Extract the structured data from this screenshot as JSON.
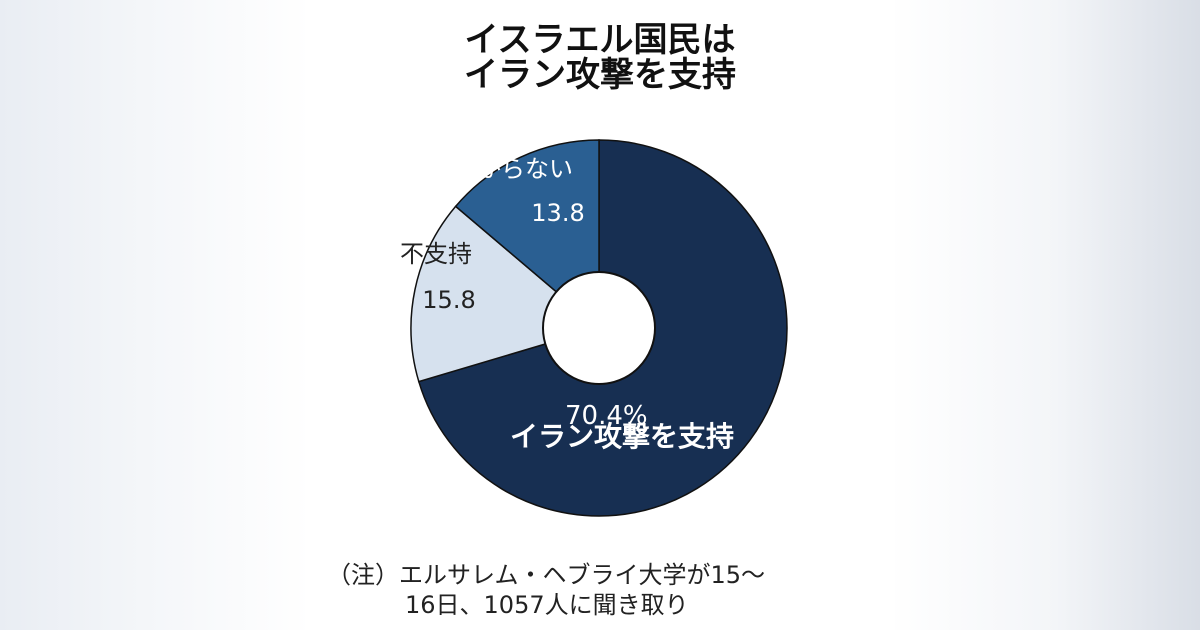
{
  "title": {
    "line1": "イスラエル国民は",
    "line2": "イラン攻撃を支持"
  },
  "chart_data": {
    "type": "pie",
    "donut": true,
    "slices": [
      {
        "label": "イラン攻撃を支持",
        "value": 70.4,
        "value_text": "70.4%",
        "color": "#172f52"
      },
      {
        "label": "不支持",
        "value": 15.8,
        "value_text": "15.8",
        "color": "#d6e1ee"
      },
      {
        "label": "分からない",
        "value": 13.8,
        "value_text": "13.8",
        "color": "#2a5f92"
      }
    ]
  },
  "note": {
    "line1": "（注）エルサレム・ヘブライ大学が15〜",
    "line2": "16日、1057人に聞き取り"
  }
}
